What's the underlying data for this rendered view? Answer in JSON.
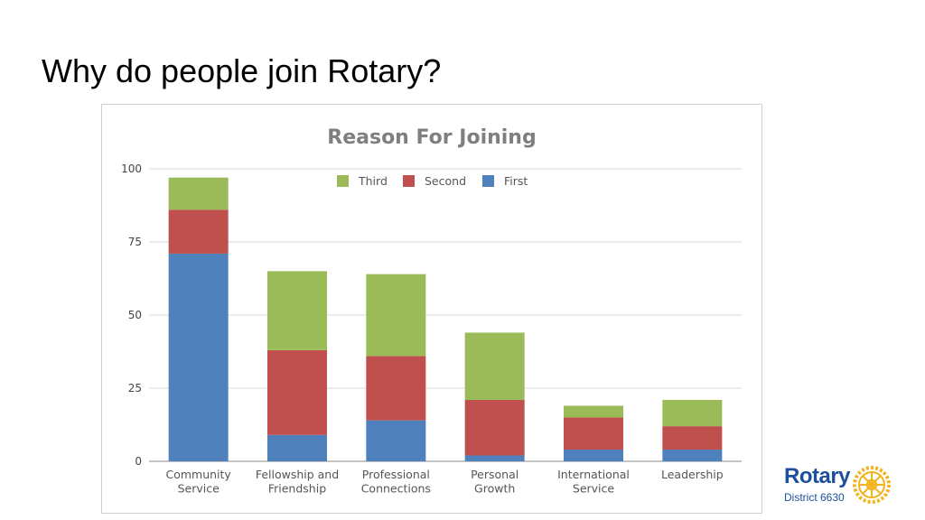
{
  "slide": {
    "title": "Why do people join Rotary?"
  },
  "logo": {
    "wordmark": "Rotary",
    "subtitle": "District 6630",
    "icon": "rotary-wheel-icon",
    "color": "#1c4f9c",
    "wheel_color": "#f2b41c"
  },
  "colors": {
    "first": "#4f81bd",
    "second": "#c0504d",
    "third": "#9bbb59",
    "grid": "#d9d9d9",
    "axis": "#888888"
  },
  "chart_data": {
    "type": "bar",
    "stacked": true,
    "title": "Reason For Joining",
    "categories": [
      [
        "Community",
        "Service"
      ],
      [
        "Fellowship and",
        "Friendship"
      ],
      [
        "Professional",
        "Connections"
      ],
      [
        "Personal",
        "Growth"
      ],
      [
        "International",
        "Service"
      ],
      [
        "Leadership"
      ]
    ],
    "series": [
      {
        "name": "First",
        "color": "#4f81bd",
        "values": [
          71,
          9,
          14,
          2,
          4,
          4
        ]
      },
      {
        "name": "Second",
        "color": "#c0504d",
        "values": [
          15,
          29,
          22,
          19,
          11,
          8
        ]
      },
      {
        "name": "Third",
        "color": "#9bbb59",
        "values": [
          11,
          27,
          28,
          23,
          4,
          9
        ]
      }
    ],
    "legend_order": [
      "Third",
      "Second",
      "First"
    ],
    "legend_position": "top",
    "ylim": [
      0,
      100
    ],
    "yticks": [
      0,
      25,
      50,
      75,
      100
    ],
    "grid": true
  }
}
